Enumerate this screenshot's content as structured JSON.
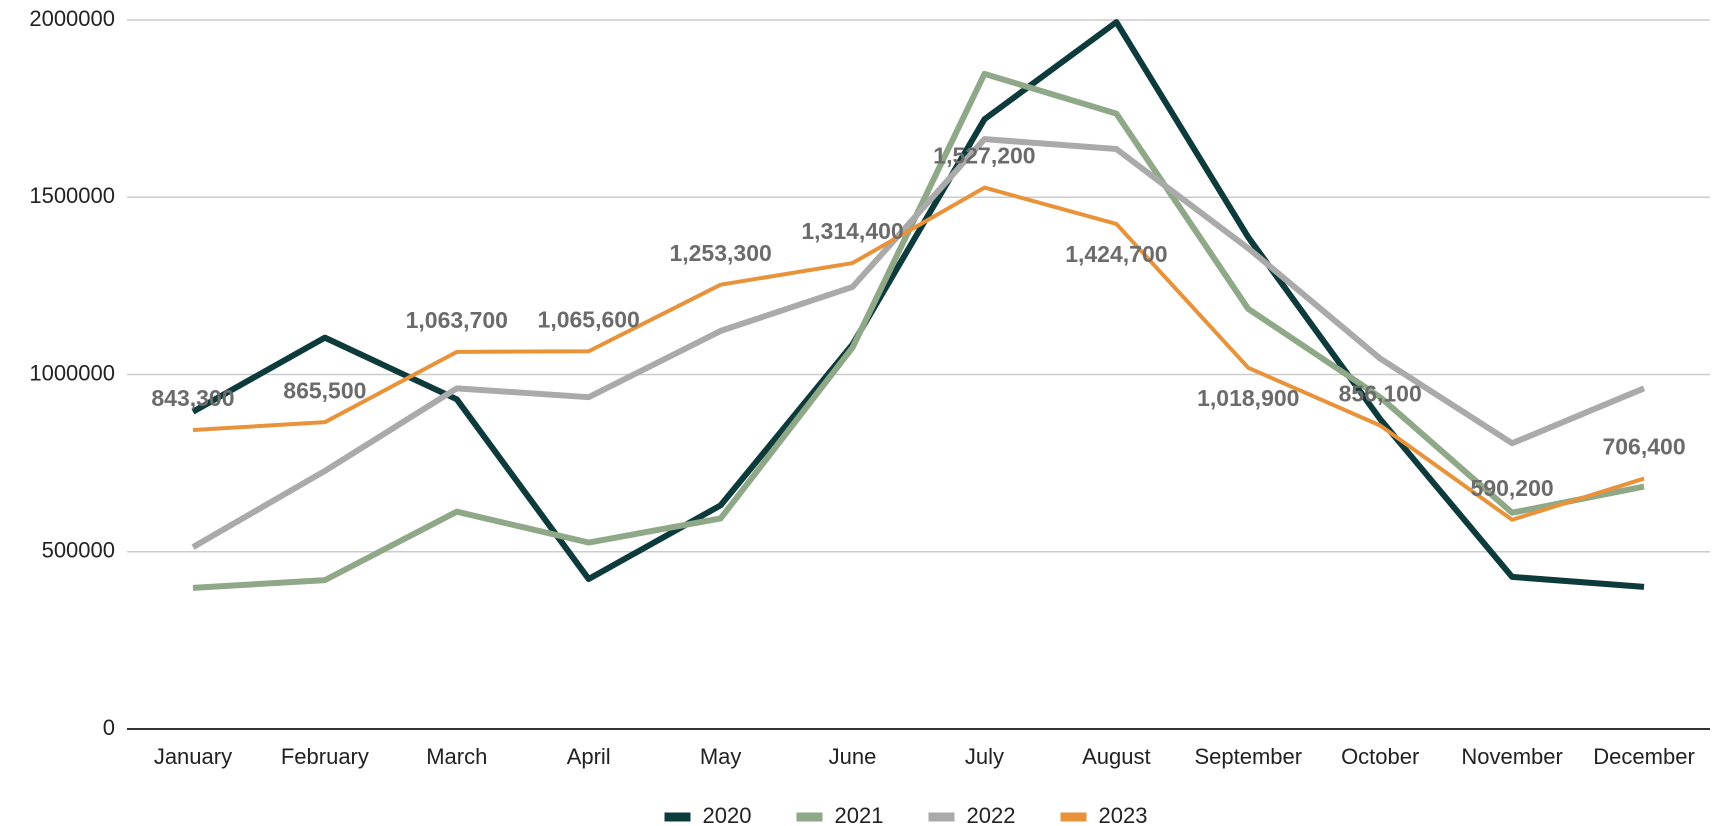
{
  "chart_data": {
    "type": "line",
    "categories": [
      "January",
      "February",
      "March",
      "April",
      "May",
      "June",
      "July",
      "August",
      "September",
      "October",
      "November",
      "December"
    ],
    "series": [
      {
        "name": "2020",
        "color": "#0d3b3b",
        "values": [
          895000,
          1104000,
          930000,
          423000,
          631000,
          1085000,
          1720000,
          1994000,
          1387000,
          874000,
          429000,
          401000
        ]
      },
      {
        "name": "2021",
        "color": "#8fa888",
        "values": [
          398000,
          420000,
          613000,
          526000,
          594000,
          1076000,
          1848000,
          1736000,
          1185000,
          936000,
          610000,
          684000
        ]
      },
      {
        "name": "2022",
        "color": "#aaaaaa",
        "values": [
          513000,
          728000,
          961000,
          936000,
          1123000,
          1247000,
          1664000,
          1636000,
          1356000,
          1045000,
          806000,
          961000
        ]
      },
      {
        "name": "2023",
        "color": "#e8923a",
        "values": [
          843300,
          865500,
          1063700,
          1065600,
          1253300,
          1314400,
          1527200,
          1424700,
          1018900,
          856100,
          590200,
          706400
        ],
        "value_labels": [
          "843,300",
          "865,500",
          "1,063,700",
          "1,065,600",
          "1,253,300",
          "1,314,400",
          "1,527,200",
          "1,424,700",
          "1,018,900",
          "856,100",
          "590,200",
          "706,400"
        ]
      }
    ],
    "ylim": [
      0,
      2000000
    ],
    "yticks": [
      0,
      500000,
      1000000,
      1500000,
      2000000
    ],
    "grid": true,
    "legend": "bottom"
  }
}
